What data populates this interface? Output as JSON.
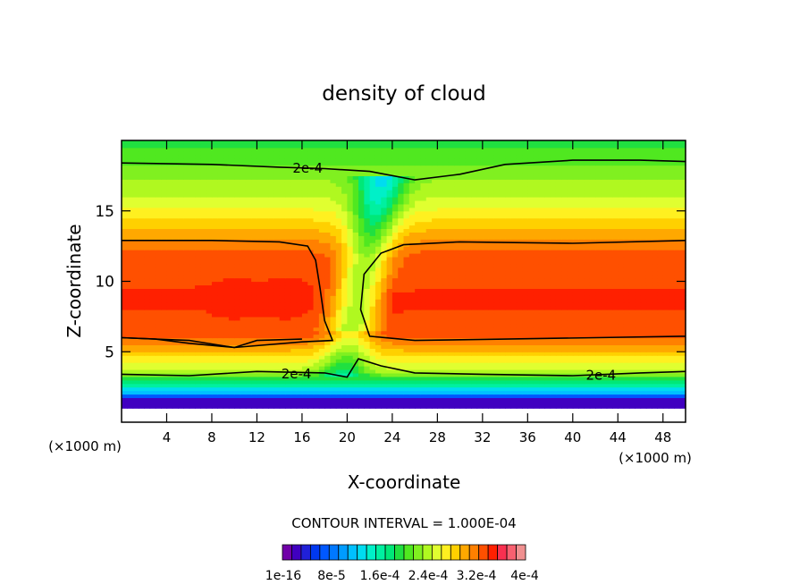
{
  "chart_data": {
    "type": "heatmap",
    "subtype": "filled contour",
    "title": "density of cloud",
    "xlabel": "X-coordinate",
    "ylabel": "Z-coordinate",
    "x_unit_label": "(×1000 m)",
    "y_unit_label": "(×1000 m)",
    "xlim": [
      0,
      50
    ],
    "ylim": [
      0,
      20
    ],
    "xticks": [
      4,
      8,
      12,
      16,
      20,
      24,
      28,
      32,
      36,
      40,
      44,
      48
    ],
    "yticks": [
      5,
      10,
      15
    ],
    "contour_interval_text": "CONTOUR INTERVAL = 1.000E-04",
    "contour_line_label": "2e-4",
    "contour_line_labels": [
      {
        "text": "2e-4",
        "x": 16.5,
        "y": 18.1
      },
      {
        "text": "2e-4",
        "x": 15.5,
        "y": 3.5
      },
      {
        "text": "2e-4",
        "x": 42.5,
        "y": 3.4
      }
    ],
    "colorbar_labels": [
      "1e-16",
      "8e-5",
      "1.6e-4",
      "2.4e-4",
      "3.2e-4",
      "4e-4"
    ],
    "colorbar_colors": [
      "#7000a8",
      "#4000c0",
      "#2020d8",
      "#0038f0",
      "#0058ff",
      "#0078ff",
      "#009cff",
      "#00c0ff",
      "#00dcf0",
      "#00f0c8",
      "#00f0a0",
      "#00e878",
      "#20e040",
      "#50e820",
      "#80f020",
      "#b0f820",
      "#e0ff30",
      "#fff020",
      "#ffd000",
      "#ffa800",
      "#ff8000",
      "#ff5000",
      "#ff2000",
      "#f83050",
      "#f86070",
      "#f09090"
    ],
    "grid": false,
    "field_description_levels": {
      "top_band_level_index": 13,
      "core_level_index": 21,
      "max_level_index": 22
    }
  }
}
